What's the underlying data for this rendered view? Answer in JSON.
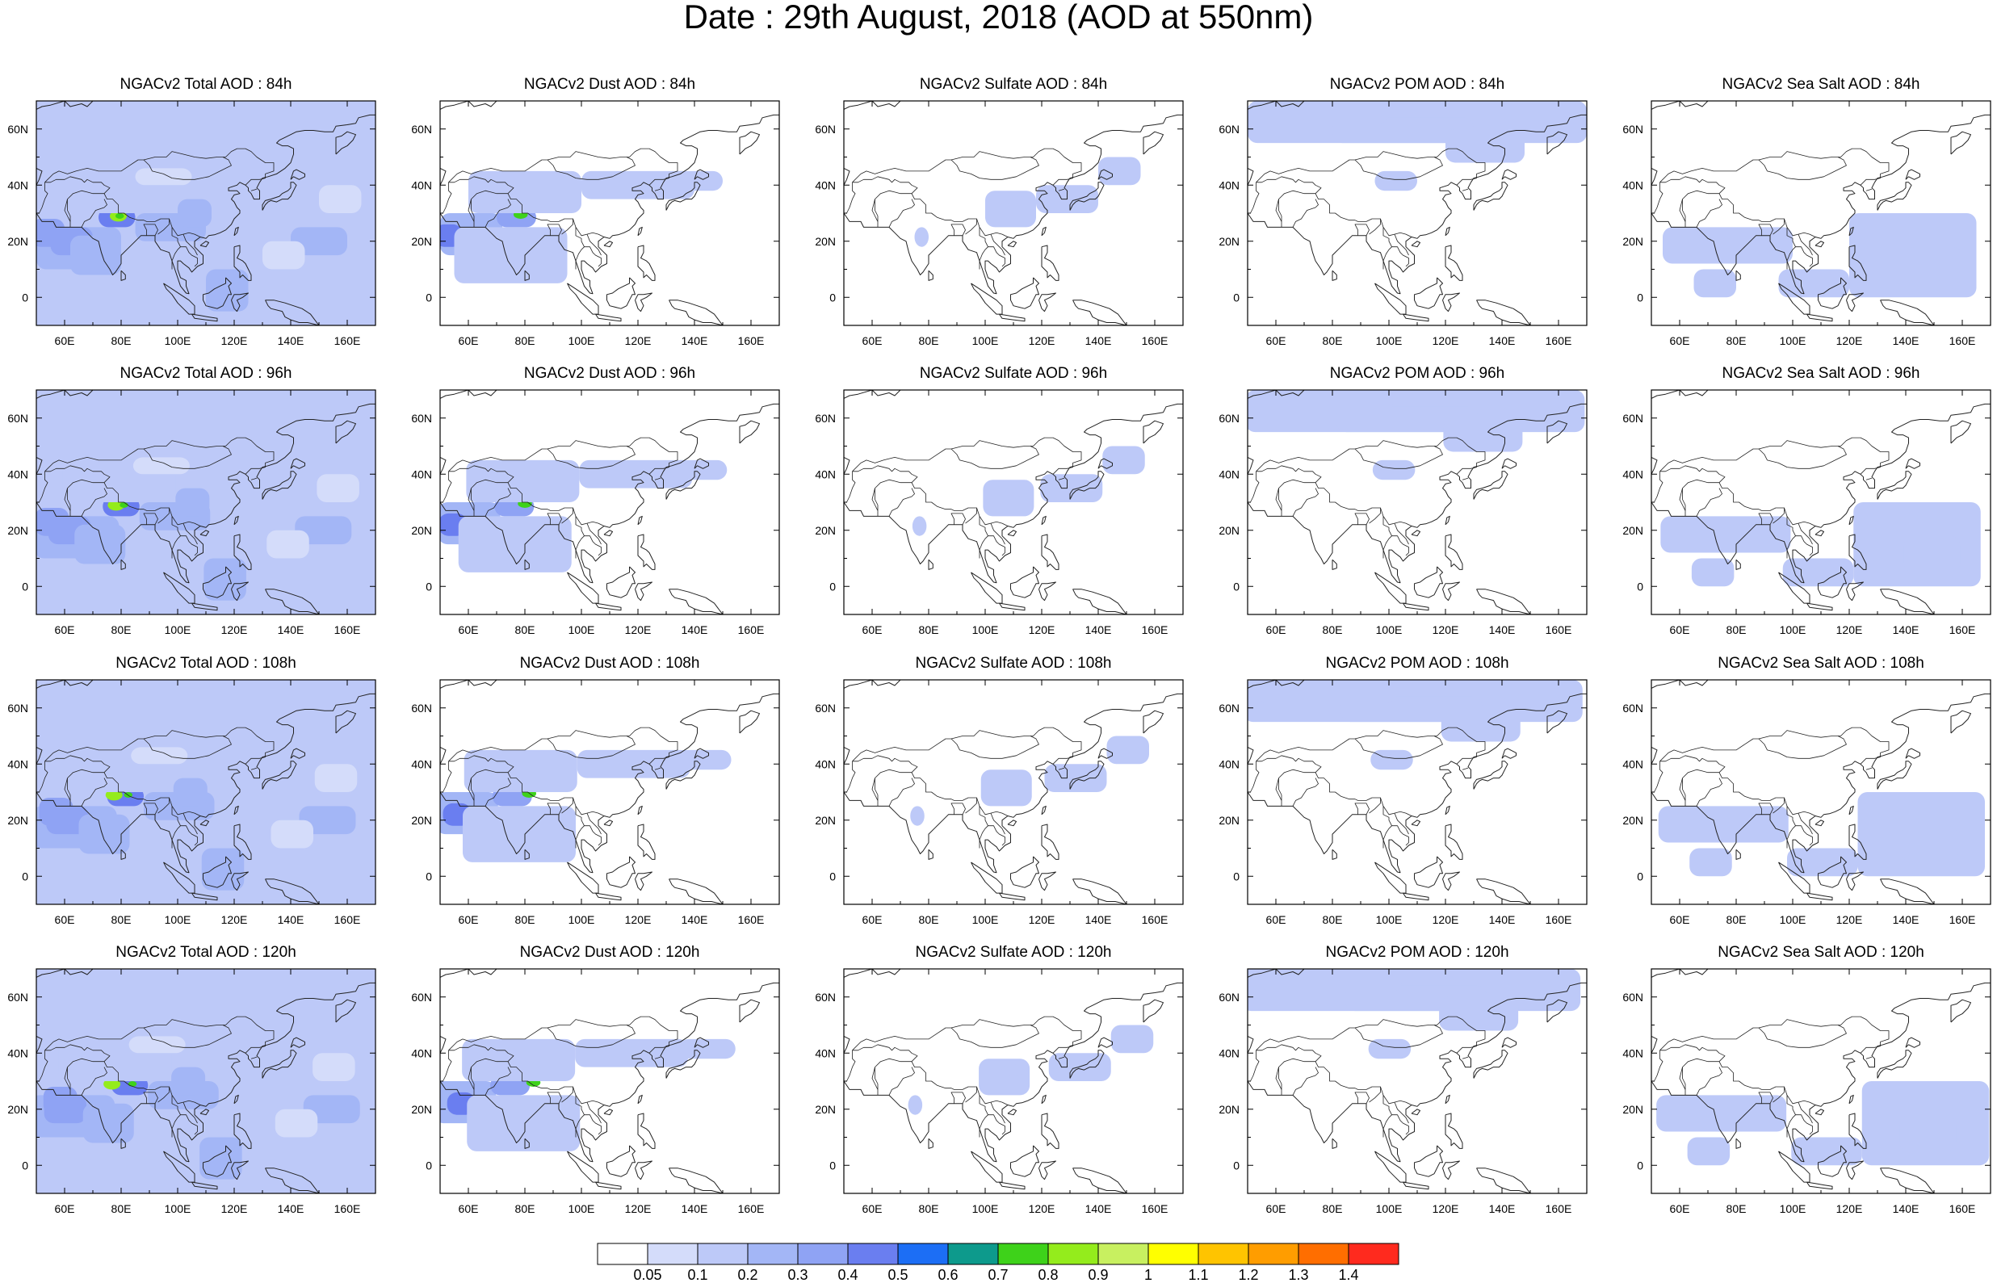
{
  "title": "Date : 29th August, 2018 (AOD at 550nm)",
  "species": [
    {
      "name": "Total",
      "label": "NGACv2 Total AOD"
    },
    {
      "name": "Dust",
      "label": "NGACv2 Dust AOD"
    },
    {
      "name": "Sulfate",
      "label": "NGACv2 Sulfate AOD"
    },
    {
      "name": "POM",
      "label": "NGACv2 POM AOD"
    },
    {
      "name": "SeaSalt",
      "label": "NGACv2 Sea Salt AOD"
    }
  ],
  "panels": [
    [
      "NGACv2 Total AOD : 84h",
      "NGACv2 Dust AOD : 84h",
      "NGACv2 Sulfate AOD : 84h",
      "NGACv2 POM AOD : 84h",
      "NGACv2 Sea Salt AOD : 84h"
    ],
    [
      "NGACv2 Total AOD : 96h",
      "NGACv2 Dust AOD : 96h",
      "NGACv2 Sulfate AOD : 96h",
      "NGACv2 POM AOD : 96h",
      "NGACv2 Sea Salt AOD : 96h"
    ],
    [
      "NGACv2 Total AOD : 108h",
      "NGACv2 Dust AOD : 108h",
      "NGACv2 Sulfate AOD : 108h",
      "NGACv2 POM AOD : 108h",
      "NGACv2 Sea Salt AOD : 108h"
    ],
    [
      "NGACv2 Total AOD : 120h",
      "NGACv2 Dust AOD : 120h",
      "NGACv2 Sulfate AOD : 120h",
      "NGACv2 POM AOD : 120h",
      "NGACv2 Sea Salt  AOD : 120h"
    ]
  ],
  "forecast_hours": [
    "84h",
    "96h",
    "108h",
    "120h"
  ],
  "map_extent": {
    "lon_min": 50,
    "lon_max": 170,
    "lat_min": -10,
    "lat_max": 70
  },
  "lon_ticks": [
    {
      "value": 60,
      "label": "60E"
    },
    {
      "value": 80,
      "label": "80E"
    },
    {
      "value": 100,
      "label": "100E"
    },
    {
      "value": 120,
      "label": "120E"
    },
    {
      "value": 140,
      "label": "140E"
    },
    {
      "value": 160,
      "label": "160E"
    }
  ],
  "lat_ticks": [
    {
      "value": 0,
      "label": "0"
    },
    {
      "value": 20,
      "label": "20N"
    },
    {
      "value": 40,
      "label": "40N"
    },
    {
      "value": 60,
      "label": "60N"
    }
  ],
  "colorbar": {
    "levels": [
      "0.05",
      "0.1",
      "0.2",
      "0.3",
      "0.4",
      "0.5",
      "0.6",
      "0.7",
      "0.8",
      "0.9",
      "1",
      "1.1",
      "1.2",
      "1.3",
      "1.4"
    ],
    "colors": [
      "#ffffff",
      "#d4dcfa",
      "#bdc9f8",
      "#a3b6f6",
      "#8fa3f4",
      "#6a7ef0",
      "#1c6ef5",
      "#0d9a8c",
      "#3ed21a",
      "#94ec1c",
      "#c8f060",
      "#ffff00",
      "#ffc400",
      "#ff9d00",
      "#ff6e00",
      "#ff2a1e"
    ]
  },
  "chart_data": {
    "type": "heatmap",
    "variable": "AOD at 550nm",
    "date": "29th August, 2018",
    "species": [
      "Total",
      "Dust",
      "Sulfate",
      "POM",
      "Sea Salt"
    ],
    "forecast_hours": [
      "84h",
      "96h",
      "108h",
      "120h"
    ],
    "x_range": [
      50,
      170
    ],
    "y_range": [
      -10,
      70
    ],
    "color_levels": [
      0.05,
      0.1,
      0.2,
      0.3,
      0.4,
      0.5,
      0.6,
      0.7,
      0.8,
      0.9,
      1,
      1.1,
      1.2,
      1.3,
      1.4
    ],
    "regions": {
      "Total": [
        {
          "lon": [
            50,
            75
          ],
          "lat": [
            10,
            30
          ],
          "aod": 0.35
        },
        {
          "lon": [
            75,
            82
          ],
          "lat": [
            26,
            32
          ],
          "aod": 0.85
        },
        {
          "lon": [
            60,
            100
          ],
          "lat": [
            30,
            45
          ],
          "aod": 0.2
        },
        {
          "lon": [
            50,
            170
          ],
          "lat": [
            -10,
            70
          ],
          "aod": 0.15
        }
      ],
      "Dust": [
        {
          "lon": [
            50,
            75
          ],
          "lat": [
            15,
            30
          ],
          "aod": 0.3
        },
        {
          "lon": [
            75,
            82
          ],
          "lat": [
            27,
            31
          ],
          "aod": 0.8
        },
        {
          "lon": [
            50,
            120
          ],
          "lat": [
            10,
            45
          ],
          "aod": 0.12
        }
      ],
      "Sulfate": [
        {
          "lon": [
            100,
            120
          ],
          "lat": [
            25,
            38
          ],
          "aod": 0.12
        },
        {
          "lon": [
            120,
            140
          ],
          "lat": [
            30,
            40
          ],
          "aod": 0.1
        }
      ],
      "POM": [
        {
          "lon": [
            50,
            170
          ],
          "lat": [
            50,
            70
          ],
          "aod": 0.12
        },
        {
          "lon": [
            120,
            150
          ],
          "lat": [
            45,
            60
          ],
          "aod": 0.1
        }
      ],
      "Sea Salt": [
        {
          "lon": [
            55,
            100
          ],
          "lat": [
            10,
            25
          ],
          "aod": 0.12
        },
        {
          "lon": [
            120,
            165
          ],
          "lat": [
            0,
            30
          ],
          "aod": 0.12
        }
      ]
    }
  }
}
